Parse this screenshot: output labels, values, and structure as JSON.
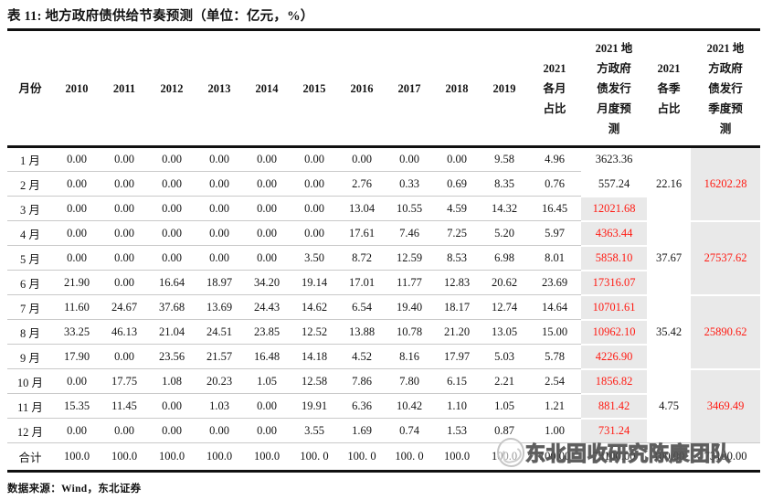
{
  "title": "表 11: 地方政府债供给节奏预测（单位：亿元，%）",
  "source": "数据来源：Wind，东北证券",
  "watermark": {
    "text": "东北固收研究陈康团队",
    "logo": "dongbei-securities-logo"
  },
  "colors": {
    "accent_red": "#ff1a12",
    "cell_shade": "#e9e9e9",
    "rule_dark": "#101010",
    "rule_light": "#c9c9c9"
  },
  "table": {
    "col_headers": [
      "月份",
      "2010",
      "2011",
      "2012",
      "2013",
      "2014",
      "2015",
      "2016",
      "2017",
      "2018",
      "2019",
      "2021\n各月\n占比",
      "2021 地\n方政府\n债发行\n月度预\n测",
      "2021\n各季\n占比",
      "2021 地\n方政府\n债发行\n季度预\n测"
    ],
    "rows": [
      {
        "label": "1 月",
        "values": [
          "0.00",
          "0.00",
          "0.00",
          "0.00",
          "0.00",
          "0.00",
          "0.00",
          "0.00",
          "0.00",
          "9.58"
        ],
        "month_share": "4.96",
        "monthly_forecast": "3623.36",
        "highlight": false
      },
      {
        "label": "2 月",
        "values": [
          "0.00",
          "0.00",
          "0.00",
          "0.00",
          "0.00",
          "0.00",
          "2.76",
          "0.33",
          "0.69",
          "8.35"
        ],
        "month_share": "0.76",
        "monthly_forecast": "557.24",
        "highlight": false
      },
      {
        "label": "3 月",
        "values": [
          "0.00",
          "0.00",
          "0.00",
          "0.00",
          "0.00",
          "0.00",
          "13.04",
          "10.55",
          "4.59",
          "14.32"
        ],
        "month_share": "16.45",
        "monthly_forecast": "12021.68",
        "highlight": true
      },
      {
        "label": "4 月",
        "values": [
          "0.00",
          "0.00",
          "0.00",
          "0.00",
          "0.00",
          "0.00",
          "17.61",
          "7.46",
          "7.25",
          "5.20"
        ],
        "month_share": "5.97",
        "monthly_forecast": "4363.44",
        "highlight": true
      },
      {
        "label": "5 月",
        "values": [
          "0.00",
          "0.00",
          "0.00",
          "0.00",
          "0.00",
          "3.50",
          "8.72",
          "12.59",
          "8.53",
          "6.98"
        ],
        "month_share": "8.01",
        "monthly_forecast": "5858.10",
        "highlight": true
      },
      {
        "label": "6 月",
        "values": [
          "21.90",
          "0.00",
          "16.64",
          "18.97",
          "34.20",
          "19.14",
          "17.01",
          "11.77",
          "12.83",
          "20.62"
        ],
        "month_share": "23.69",
        "monthly_forecast": "17316.07",
        "highlight": true
      },
      {
        "label": "7 月",
        "values": [
          "11.60",
          "24.67",
          "37.68",
          "13.69",
          "24.43",
          "14.62",
          "6.54",
          "19.40",
          "18.17",
          "12.74"
        ],
        "month_share": "14.64",
        "monthly_forecast": "10701.61",
        "highlight": true
      },
      {
        "label": "8 月",
        "values": [
          "33.25",
          "46.13",
          "21.04",
          "24.51",
          "23.85",
          "12.52",
          "13.88",
          "10.78",
          "21.20",
          "13.05"
        ],
        "month_share": "15.00",
        "monthly_forecast": "10962.10",
        "highlight": true
      },
      {
        "label": "9 月",
        "values": [
          "17.90",
          "0.00",
          "23.56",
          "21.57",
          "16.48",
          "14.18",
          "4.52",
          "8.16",
          "17.97",
          "5.03"
        ],
        "month_share": "5.78",
        "monthly_forecast": "4226.90",
        "highlight": true
      },
      {
        "label": "10 月",
        "values": [
          "0.00",
          "17.75",
          "1.08",
          "20.23",
          "1.05",
          "12.58",
          "7.86",
          "7.80",
          "6.15",
          "2.21"
        ],
        "month_share": "2.54",
        "monthly_forecast": "1856.82",
        "highlight": true
      },
      {
        "label": "11 月",
        "values": [
          "15.35",
          "11.45",
          "0.00",
          "1.03",
          "0.00",
          "19.91",
          "6.36",
          "10.42",
          "1.10",
          "1.05"
        ],
        "month_share": "1.21",
        "monthly_forecast": "881.42",
        "highlight": true
      },
      {
        "label": "12 月",
        "values": [
          "0.00",
          "0.00",
          "0.00",
          "0.00",
          "0.00",
          "3.55",
          "1.69",
          "0.74",
          "1.53",
          "0.87"
        ],
        "month_share": "1.00",
        "monthly_forecast": "731.24",
        "highlight": true
      }
    ],
    "quarters": [
      {
        "share": "22.16",
        "forecast": "16202.28"
      },
      {
        "share": "37.67",
        "forecast": "27537.62"
      },
      {
        "share": "35.42",
        "forecast": "25890.62"
      },
      {
        "share": "4.75",
        "forecast": "3469.49"
      }
    ],
    "total": {
      "label": "合计",
      "values": [
        "100.0",
        "100.0",
        "100.0",
        "100.0",
        "100.0",
        "100. 0",
        "100. 0",
        "100. 0",
        "100.0",
        "100.0"
      ],
      "month_share": "100.00",
      "monthly_forecast": "73100.00",
      "quarter_share": "100.00",
      "quarterly_forecast": "73100.00"
    }
  }
}
